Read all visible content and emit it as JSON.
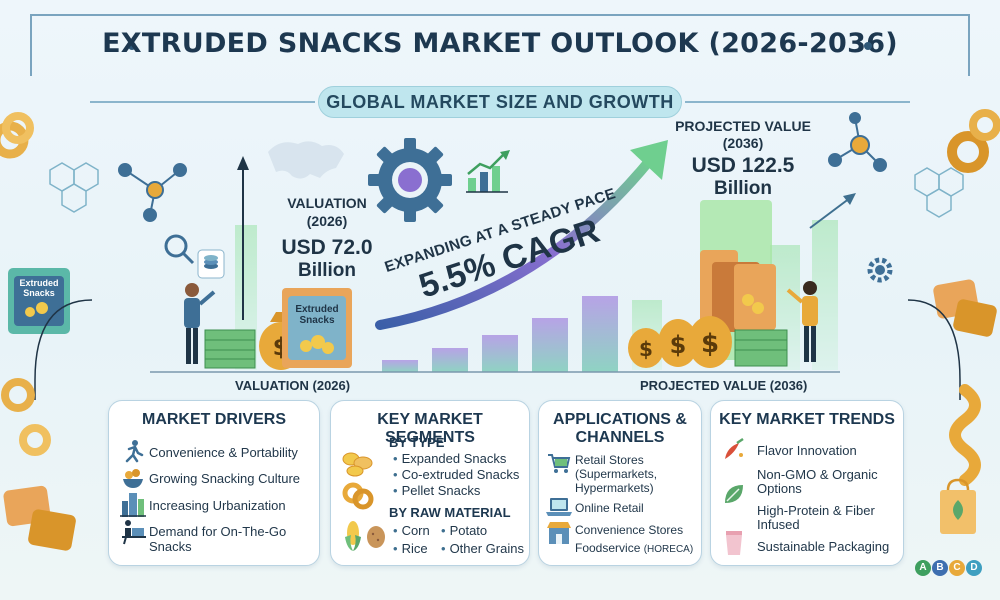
{
  "title": "EXTRUDED SNACKS MARKET OUTLOOK (2026-2036)",
  "subtitle": "GLOBAL MARKET SIZE AND GROWTH",
  "valuation": {
    "label_line1": "VALUATION",
    "label_line2": "(2026)",
    "value": "USD 72.0",
    "unit": "Billion",
    "axis_label": "VALUATION (2026)"
  },
  "projected": {
    "label_line1": "PROJECTED VALUE",
    "label_line2": "(2036)",
    "value": "USD 122.5",
    "unit": "Billion",
    "axis_label": "PROJECTED VALUE (2036)"
  },
  "growth": {
    "text": "EXPANDING AT A STEADY PACE",
    "cagr": "5.5% CAGR"
  },
  "package_label": "Extruded Snacks",
  "cards": {
    "drivers": {
      "title": "MARKET DRIVERS",
      "items": [
        "Convenience & Portability",
        "Growing Snacking Culture",
        "Increasing Urbanization",
        "Demand for On-The-Go",
        "Snacks"
      ]
    },
    "segments": {
      "title": "KEY MARKET SEGMENTS",
      "by_type": "BY TYPE",
      "types": [
        "Expanded Snacks",
        "Co-extruded Snacks",
        "Pellet Snacks"
      ],
      "by_material": "BY RAW MATERIAL",
      "materials": [
        "Corn",
        "Potato",
        "Rice",
        "Other Grains"
      ]
    },
    "channels": {
      "title_line1": "APPLICATIONS &",
      "title_line2": "CHANNELS",
      "retail": "Retail Stores",
      "retail_detail1": "(Supermarkets,",
      "retail_detail2": "Hypermarkets)",
      "online": "Online Retail",
      "convenience": "Convenience Stores",
      "foodservice": "Foodservice",
      "foodservice_note": "(HORECA)"
    },
    "trends": {
      "title": "KEY MARKET TRENDS",
      "items": [
        "Flavor Innovation",
        "Non-GMO & Organic",
        "Options",
        "High-Protein & Fiber",
        "Infused",
        "Sustainable Packaging"
      ]
    }
  },
  "logo": [
    "A",
    "B",
    "C",
    "D"
  ],
  "colors": {
    "accent": "#1d3850",
    "teal": "#bfe6ee",
    "arrow_start": "#3b6fb0",
    "arrow_end": "#6fcf8f",
    "money": "#e8a93a"
  }
}
